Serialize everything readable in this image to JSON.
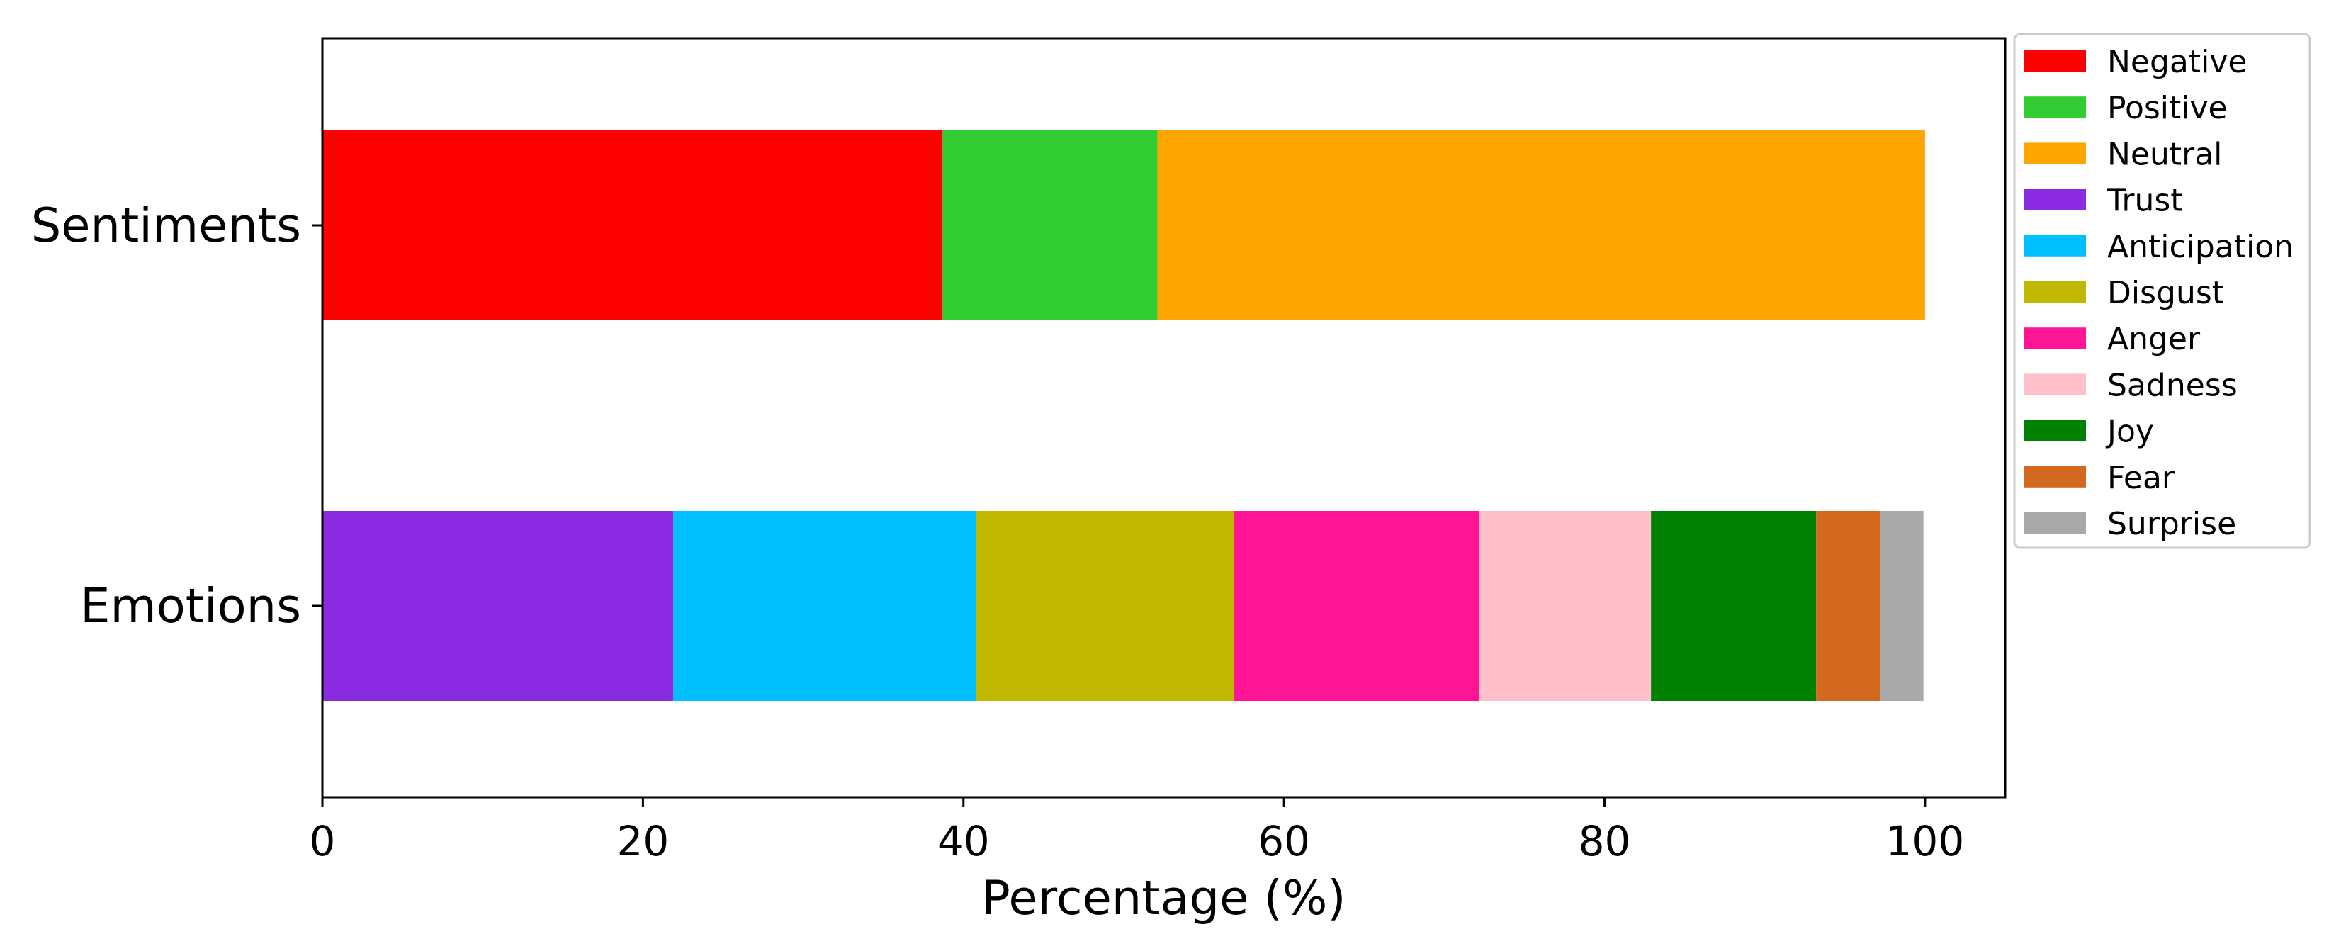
{
  "chart_data": {
    "type": "bar",
    "orientation": "horizontal",
    "stacked": true,
    "categories": [
      "Sentiments",
      "Emotions"
    ],
    "xlabel": "Percentage (%)",
    "ylabel": "",
    "xlim": [
      0,
      105
    ],
    "xticks": [
      "0",
      "20",
      "40",
      "60",
      "80",
      "100"
    ],
    "grid": false,
    "legend_position": "outside right, top",
    "series": [
      {
        "name": "Negative",
        "color": "#ff0000",
        "values": [
          38.7,
          0
        ]
      },
      {
        "name": "Positive",
        "color": "#32cd32",
        "values": [
          13.4,
          0
        ]
      },
      {
        "name": "Neutral",
        "color": "#ffa500",
        "values": [
          47.9,
          0
        ]
      },
      {
        "name": "Trust",
        "color": "#8a2be2",
        "values": [
          0,
          21.9
        ]
      },
      {
        "name": "Anticipation",
        "color": "#00bfff",
        "values": [
          0,
          18.9
        ]
      },
      {
        "name": "Disgust",
        "color": "#bfb700",
        "values": [
          0,
          16.1
        ]
      },
      {
        "name": "Anger",
        "color": "#ff1493",
        "values": [
          0,
          15.3
        ]
      },
      {
        "name": "Sadness",
        "color": "#ffc0cb",
        "values": [
          0,
          10.7
        ]
      },
      {
        "name": "Joy",
        "color": "#008000",
        "values": [
          0,
          10.3
        ]
      },
      {
        "name": "Fear",
        "color": "#d2691e",
        "values": [
          0,
          4.0
        ]
      },
      {
        "name": "Surprise",
        "color": "#a9a9a9",
        "values": [
          0,
          2.7
        ]
      }
    ]
  }
}
